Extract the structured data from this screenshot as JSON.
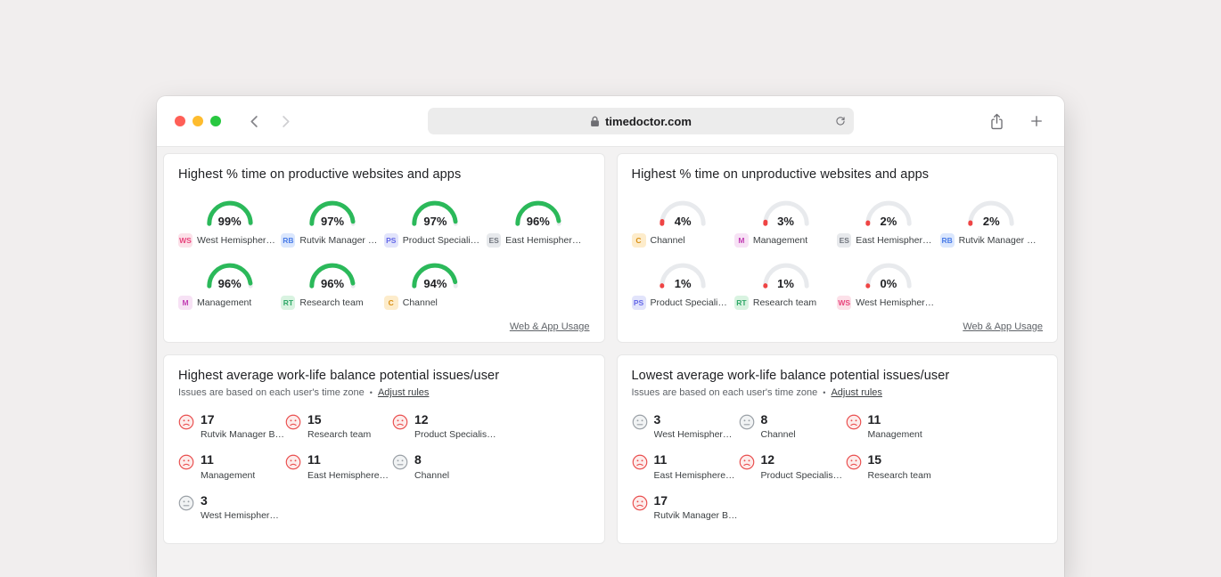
{
  "browser": {
    "url": "timedoctor.com"
  },
  "colors": {
    "gauge_productive": "#2bb95a",
    "gauge_unproductive": "#ef4444",
    "gauge_track": "#e8eaed",
    "badges": {
      "WS": {
        "bg": "#fce1e9",
        "fg": "#e8457d"
      },
      "RB": {
        "bg": "#dbe7fd",
        "fg": "#4a7ce8"
      },
      "PS": {
        "bg": "#e2e4fb",
        "fg": "#6468e8"
      },
      "ES": {
        "bg": "#e7e9ec",
        "fg": "#70757d"
      },
      "M": {
        "bg": "#f7e2f5",
        "fg": "#c23fb4"
      },
      "RT": {
        "bg": "#d9f3e1",
        "fg": "#2fa868"
      },
      "C": {
        "bg": "#fdeccb",
        "fg": "#d98f14"
      }
    },
    "moods": {
      "sad": {
        "bg": "#fdeceb",
        "fg": "#e94f4f"
      },
      "neutral": {
        "bg": "#f1f3f4",
        "fg": "#9aa0a6"
      }
    }
  },
  "cards": {
    "productive": {
      "title": "Highest % time on productive websites and apps",
      "footer_link": "Web & App Usage",
      "gauges": [
        {
          "value": 99,
          "label": "99%",
          "badge": "WS",
          "name": "West Hemispher…"
        },
        {
          "value": 97,
          "label": "97%",
          "badge": "RB",
          "name": "Rutvik Manager …"
        },
        {
          "value": 97,
          "label": "97%",
          "badge": "PS",
          "name": "Product Speciali…"
        },
        {
          "value": 96,
          "label": "96%",
          "badge": "ES",
          "name": "East Hemispher…"
        },
        {
          "value": 96,
          "label": "96%",
          "badge": "M",
          "name": "Management"
        },
        {
          "value": 96,
          "label": "96%",
          "badge": "RT",
          "name": "Research team"
        },
        {
          "value": 94,
          "label": "94%",
          "badge": "C",
          "name": "Channel"
        }
      ]
    },
    "unproductive": {
      "title": "Highest % time on unproductive websites and apps",
      "footer_link": "Web & App Usage",
      "gauges": [
        {
          "value": 4,
          "label": "4%",
          "badge": "C",
          "name": "Channel"
        },
        {
          "value": 3,
          "label": "3%",
          "badge": "M",
          "name": "Management"
        },
        {
          "value": 2,
          "label": "2%",
          "badge": "ES",
          "name": "East Hemispher…"
        },
        {
          "value": 2,
          "label": "2%",
          "badge": "RB",
          "name": "Rutvik Manager …"
        },
        {
          "value": 1,
          "label": "1%",
          "badge": "PS",
          "name": "Product Speciali…"
        },
        {
          "value": 1,
          "label": "1%",
          "badge": "RT",
          "name": "Research team"
        },
        {
          "value": 0,
          "label": "0%",
          "badge": "WS",
          "name": "West Hemispher…"
        }
      ]
    },
    "highest_issues": {
      "title": "Highest average work-life balance potential issues/user",
      "subtitle": "Issues are based on each user's time zone",
      "adjust_link": "Adjust rules",
      "items": [
        {
          "count": 17,
          "name": "Rutvik Manager B…",
          "mood": "sad"
        },
        {
          "count": 15,
          "name": "Research team",
          "mood": "sad"
        },
        {
          "count": 12,
          "name": "Product Specialis…",
          "mood": "sad"
        },
        {
          "count": 11,
          "name": "Management",
          "mood": "sad"
        },
        {
          "count": 11,
          "name": "East Hemisphere…",
          "mood": "sad"
        },
        {
          "count": 8,
          "name": "Channel",
          "mood": "neutral"
        },
        {
          "count": 3,
          "name": "West Hemispher…",
          "mood": "neutral"
        }
      ]
    },
    "lowest_issues": {
      "title": "Lowest average work-life balance potential issues/user",
      "subtitle": "Issues are based on each user's time zone",
      "adjust_link": "Adjust rules",
      "items": [
        {
          "count": 3,
          "name": "West Hemispher…",
          "mood": "neutral"
        },
        {
          "count": 8,
          "name": "Channel",
          "mood": "neutral"
        },
        {
          "count": 11,
          "name": "Management",
          "mood": "sad"
        },
        {
          "count": 11,
          "name": "East Hemisphere…",
          "mood": "sad"
        },
        {
          "count": 12,
          "name": "Product Specialis…",
          "mood": "sad"
        },
        {
          "count": 15,
          "name": "Research team",
          "mood": "sad"
        },
        {
          "count": 17,
          "name": "Rutvik Manager B…",
          "mood": "sad"
        }
      ]
    }
  }
}
